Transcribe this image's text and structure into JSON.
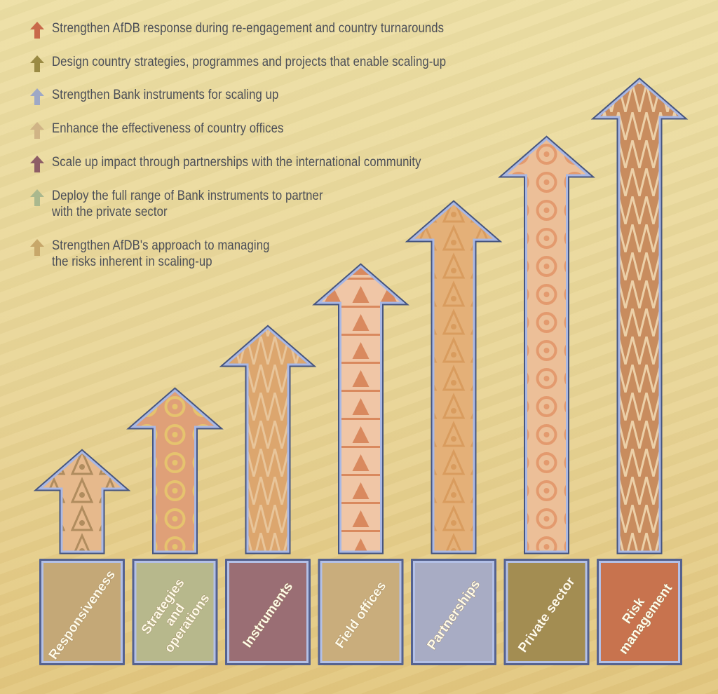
{
  "legend": [
    {
      "text": "Strengthen AfDB response during re-engagement and country turnarounds",
      "color": "#c8694a"
    },
    {
      "text": "Design country strategies, programmes and projects that enable scaling-up",
      "color": "#9a8a44"
    },
    {
      "text": "Strengthen Bank instruments for scaling up",
      "color": "#9ea8c6"
    },
    {
      "text": "Enhance the effectiveness of country offices",
      "color": "#d0b486"
    },
    {
      "text": "Scale up impact through partnerships with the international community",
      "color": "#8e5e66"
    },
    {
      "text": "Deploy the full range of Bank instruments to partner\nwith the private sector",
      "color": "#aab88e"
    },
    {
      "text": "Strengthen AfDB's approach to managing\nthe risks inherent in scaling-up",
      "color": "#c7a76a"
    }
  ],
  "pillars": [
    {
      "lines": [
        "Responsiveness"
      ],
      "box_color": "#c4a877",
      "arrow_color": "#e6b98c",
      "pattern_color": "#b08c5e",
      "level": 1
    },
    {
      "lines": [
        "Strategies",
        "and",
        "operations"
      ],
      "box_color": "#b7b88c",
      "arrow_color": "#dfa078",
      "pattern_color": "#e6c36e",
      "level": 2
    },
    {
      "lines": [
        "Instruments"
      ],
      "box_color": "#9a6e74",
      "arrow_color": "#dca66e",
      "pattern_color": "#e8c59a",
      "level": 3
    },
    {
      "lines": [
        "Field offices"
      ],
      "box_color": "#c9ad7c",
      "arrow_color": "#f0c6a6",
      "pattern_color": "#d9895e",
      "level": 4
    },
    {
      "lines": [
        "Partnerships"
      ],
      "box_color": "#a8acc4",
      "arrow_color": "#e4b078",
      "pattern_color": "#d99c5e",
      "level": 5
    },
    {
      "lines": [
        "Private sector"
      ],
      "box_color": "#a38d52",
      "arrow_color": "#ecbf98",
      "pattern_color": "#e39a6e",
      "level": 6
    },
    {
      "lines": [
        "Risk",
        "management"
      ],
      "box_color": "#c8734e",
      "arrow_color": "#c88c5e",
      "pattern_color": "#ecd0a8",
      "level": 7
    }
  ]
}
